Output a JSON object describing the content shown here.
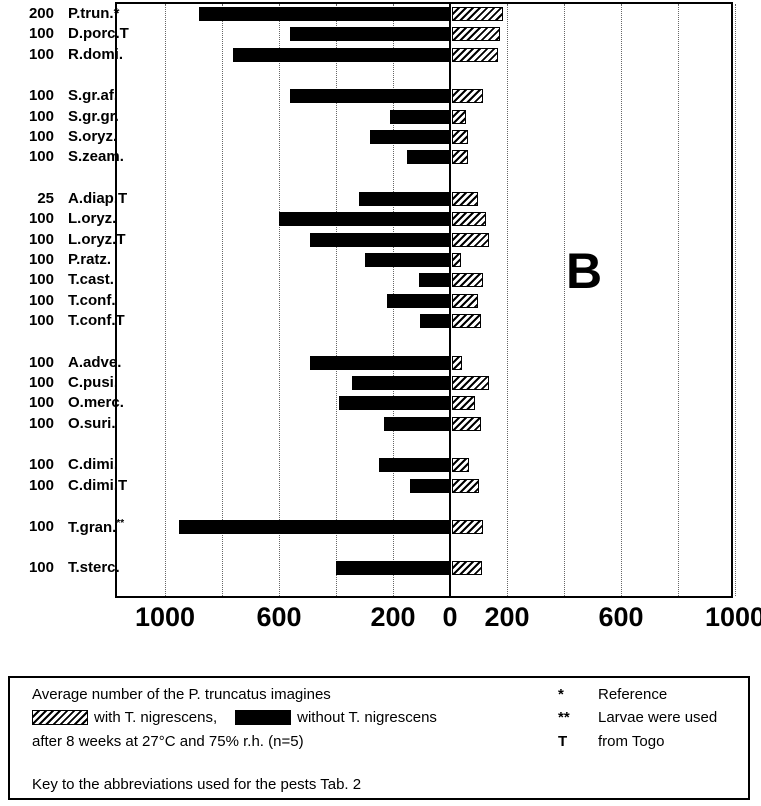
{
  "chart_data": {
    "type": "bar",
    "orientation": "horizontal-diverging",
    "panel_label": "B",
    "title": "Average number of the P. truncatus imagines after 8 weeks at 27°C and 75% r.h. (n=5)",
    "xlabel": "",
    "ylabel": "",
    "x_ticks": [
      {
        "value": -1000,
        "label": "1000"
      },
      {
        "value": -600,
        "label": "600"
      },
      {
        "value": -200,
        "label": "200"
      },
      {
        "value": 0,
        "label": "0"
      },
      {
        "value": 200,
        "label": "200"
      },
      {
        "value": 600,
        "label": "600"
      },
      {
        "value": 1000,
        "label": "1000"
      }
    ],
    "gridlines": [
      -1000,
      -800,
      -600,
      -400,
      -200,
      200,
      400,
      600,
      800,
      1000
    ],
    "series": [
      {
        "name": "without T. nigrescens",
        "style": "solid-black",
        "side": "left"
      },
      {
        "name": "with T. nigrescens",
        "style": "hatched",
        "side": "right"
      }
    ],
    "rows": [
      {
        "n": "200",
        "label": "P.trun.*",
        "sup": "",
        "without": 880,
        "with": 180,
        "gap_before": false
      },
      {
        "n": "100",
        "label": "D.porc.T",
        "sup": "",
        "without": 560,
        "with": 170,
        "gap_before": false
      },
      {
        "n": "100",
        "label": "R.domi.",
        "sup": "",
        "without": 760,
        "with": 160,
        "gap_before": false
      },
      {
        "n": "100",
        "label": "S.gr.af.",
        "sup": "",
        "without": 560,
        "with": 110,
        "gap_before": true
      },
      {
        "n": "100",
        "label": "S.gr.gr.",
        "sup": "",
        "without": 210,
        "with": 50,
        "gap_before": false
      },
      {
        "n": "100",
        "label": "S.oryz.",
        "sup": "",
        "without": 280,
        "with": 55,
        "gap_before": false
      },
      {
        "n": "100",
        "label": "S.zeam.",
        "sup": "",
        "without": 150,
        "with": 55,
        "gap_before": false
      },
      {
        "n": "25",
        "label": "A.diap.T",
        "sup": "",
        "without": 320,
        "with": 90,
        "gap_before": true
      },
      {
        "n": "100",
        "label": "L.oryz.",
        "sup": "",
        "without": 600,
        "with": 120,
        "gap_before": false
      },
      {
        "n": "100",
        "label": "L.oryz.T",
        "sup": "",
        "without": 490,
        "with": 130,
        "gap_before": false
      },
      {
        "n": "100",
        "label": "P.ratz.",
        "sup": "",
        "without": 300,
        "with": 30,
        "gap_before": false
      },
      {
        "n": "100",
        "label": "T.cast.",
        "sup": "",
        "without": 110,
        "with": 110,
        "gap_before": false
      },
      {
        "n": "100",
        "label": "T.conf.",
        "sup": "",
        "without": 220,
        "with": 90,
        "gap_before": false
      },
      {
        "n": "100",
        "label": "T.conf.T",
        "sup": "",
        "without": 105,
        "with": 100,
        "gap_before": false
      },
      {
        "n": "100",
        "label": "A.adve.",
        "sup": "",
        "without": 490,
        "with": 35,
        "gap_before": true
      },
      {
        "n": "100",
        "label": "C.pusi.",
        "sup": "",
        "without": 345,
        "with": 130,
        "gap_before": false
      },
      {
        "n": "100",
        "label": "O.merc.",
        "sup": "",
        "without": 390,
        "with": 80,
        "gap_before": false
      },
      {
        "n": "100",
        "label": "O.suri.",
        "sup": "",
        "without": 230,
        "with": 100,
        "gap_before": false
      },
      {
        "n": "100",
        "label": "C.dimi.",
        "sup": "",
        "without": 250,
        "with": 60,
        "gap_before": true
      },
      {
        "n": "100",
        "label": "C.dimi.T",
        "sup": "",
        "without": 140,
        "with": 95,
        "gap_before": false
      },
      {
        "n": "100",
        "label": "T.gran.",
        "sup": "**",
        "without": 950,
        "with": 110,
        "gap_before": true
      },
      {
        "n": "100",
        "label": "T.sterc.",
        "sup": "",
        "without": 400,
        "with": 105,
        "gap_before": true
      }
    ]
  },
  "legend": {
    "line1": "Average number of the P. truncatus imagines",
    "with_label": "with T. nigrescens,",
    "without_label": "without T. nigrescens",
    "line3": "after 8 weeks at 27°C and 75% r.h. (n=5)",
    "notes": [
      {
        "symbol": "*",
        "text": "Reference"
      },
      {
        "symbol": "**",
        "text": "Larvae were used"
      },
      {
        "symbol": "T",
        "text": "from Togo"
      }
    ],
    "footer": "Key to the abbreviations used for the pests Tab. 2"
  }
}
